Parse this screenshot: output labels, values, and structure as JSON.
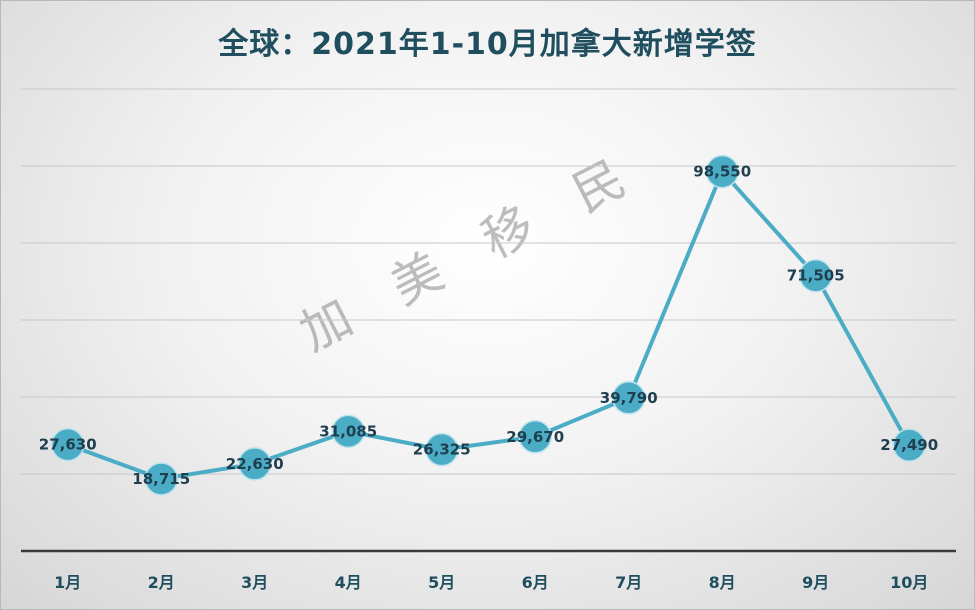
{
  "chart_data": {
    "type": "line",
    "title": "全球：2021年1-10月加拿大新增学签",
    "categories": [
      "1月",
      "2月",
      "3月",
      "4月",
      "5月",
      "6月",
      "7月",
      "8月",
      "9月",
      "10月"
    ],
    "series": [
      {
        "values": [
          27630,
          18715,
          22630,
          31085,
          26325,
          29670,
          39790,
          98550,
          71505,
          27490
        ]
      }
    ],
    "data_labels": [
      "27,630",
      "18,715",
      "22,630",
      "31,085",
      "26,325",
      "29,670",
      "39,790",
      "98,550",
      "71,505",
      "27,490"
    ],
    "ylim": [
      0,
      120000
    ],
    "y_gridline_step": 20000,
    "grid": true,
    "legend": "none",
    "line_color": "#4bacc6",
    "watermark": "加美移民"
  }
}
